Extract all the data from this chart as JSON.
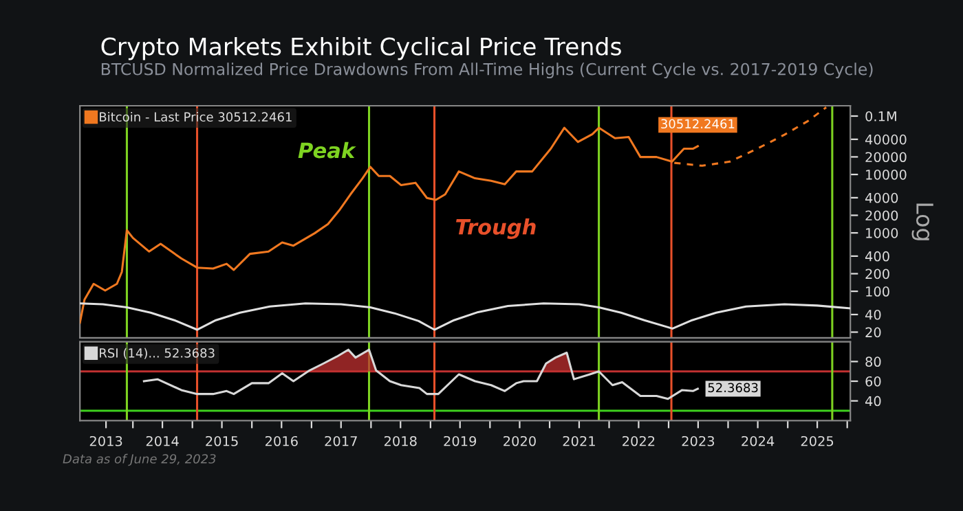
{
  "chart_data": [
    {
      "type": "line",
      "title": "Crypto Markets Exhibit Cyclical Price Trends",
      "subtitle": "BTCUSD Normalized Price Drawdowns From All-Time Highs (Current Cycle vs. 2017-2019 Cycle)",
      "ylabel": "Log",
      "log": "y",
      "xlim": [
        "2013-02-10",
        "2026-01-20"
      ],
      "ylim": [
        16,
        150000
      ],
      "yticks": [
        20,
        40,
        100,
        200,
        400,
        1000,
        2000,
        4000,
        10000,
        20000,
        40000,
        {
          "value": 100000,
          "label": "0.1M"
        }
      ],
      "tick_labels": "y",
      "legend": "top left",
      "marker": "none",
      "series": [
        {
          "name": "Bitcoin - Last Price 30512.2461",
          "color": "#f07820",
          "line_style": "solid",
          "x": [
            "2013-02-10",
            "2013-03-10",
            "2013-05-05",
            "2013-07-15",
            "2013-09-25",
            "2013-10-25",
            "2013-11-25",
            "2014-01-01",
            "2014-04-10",
            "2014-06-20",
            "2014-10-25",
            "2015-01-30",
            "2015-05-08",
            "2015-07-30",
            "2015-09-12",
            "2015-12-20",
            "2016-04-12",
            "2016-07-05",
            "2016-09-12",
            "2017-01-20",
            "2017-04-12",
            "2017-06-20",
            "2017-08-28",
            "2017-11-10",
            "2017-12-28",
            "2018-02-18",
            "2018-04-27",
            "2018-07-05",
            "2018-10-01",
            "2018-12-10",
            "2019-02-03",
            "2019-04-01",
            "2019-06-24",
            "2019-10-01",
            "2020-01-08",
            "2020-04-01",
            "2020-06-10",
            "2020-09-16",
            "2021-01-08",
            "2021-04-01",
            "2021-06-24",
            "2021-09-20",
            "2021-10-30",
            "2022-02-06",
            "2022-05-01",
            "2022-07-12",
            "2022-10-19",
            "2023-01-22",
            "2023-04-05",
            "2023-05-30",
            "2023-06-29"
          ],
          "values": [
            29,
            72,
            134,
            103,
            134,
            214,
            1110,
            820,
            480,
            650,
            365,
            254,
            245,
            295,
            232,
            437,
            480,
            684,
            604,
            985,
            1415,
            2430,
            4560,
            8600,
            13500,
            9400,
            9400,
            6560,
            7200,
            3960,
            3670,
            4560,
            11260,
            8600,
            7800,
            6800,
            11260,
            11260,
            27600,
            63000,
            36000,
            49000,
            63000,
            41700,
            43700,
            19900,
            19900,
            16600,
            27600,
            27600,
            30512.2461
          ],
          "value_labels": [
            null,
            null,
            null,
            null,
            null,
            null,
            null,
            null,
            null,
            null,
            null,
            null,
            null,
            null,
            null,
            null,
            null,
            null,
            null,
            null,
            null,
            null,
            null,
            null,
            null,
            null,
            null,
            null,
            null,
            null,
            null,
            null,
            null,
            null,
            null,
            null,
            null,
            null,
            null,
            null,
            null,
            null,
            null,
            null,
            null,
            null,
            null,
            null,
            null,
            null,
            "30512.2461"
          ]
        },
        {
          "color": "#f07820",
          "line_style": "dashed",
          "x": [
            "2023-02-05",
            "2023-07-26",
            "2024-01-12",
            "2024-06-28",
            "2024-12-12",
            "2025-05-04",
            "2025-08-25"
          ],
          "values": [
            15800,
            14100,
            16600,
            27600,
            48000,
            82000,
            141000
          ]
        },
        {
          "color": "#e0e0e0",
          "line_style": "solid",
          "x": [
            "2013-02-10",
            "2013-07-01",
            "2013-11-25",
            "2014-04-20",
            "2014-09-12",
            "2015-01-30",
            "2015-05-25",
            "2015-10-20",
            "2016-04-20",
            "2016-11-25",
            "2017-07-01",
            "2017-12-28",
            "2018-05-25",
            "2018-10-20",
            "2019-01-25",
            "2019-05-25",
            "2019-10-20",
            "2020-04-20",
            "2020-11-25",
            "2021-07-01",
            "2021-10-30",
            "2022-03-15",
            "2022-08-05",
            "2023-01-25",
            "2023-05-25",
            "2023-10-20",
            "2024-04-20",
            "2024-12-12",
            "2025-07-01",
            "2026-01-20"
          ],
          "values": [
            62,
            60,
            53,
            43,
            32,
            22,
            32,
            43,
            55,
            62,
            60,
            53,
            42,
            31,
            22,
            32,
            44,
            56,
            62,
            60,
            53,
            43,
            32,
            23,
            32,
            43,
            55,
            60,
            57,
            51
          ]
        }
      ],
      "ref_lines": [
        {
          "axis": "x",
          "value": "2013-11-25",
          "color": "#7ed321"
        },
        {
          "axis": "x",
          "value": "2015-01-30",
          "color": "#e8502a"
        },
        {
          "axis": "x",
          "value": "2017-12-20",
          "color": "#7ed321"
        },
        {
          "axis": "x",
          "value": "2019-01-25",
          "color": "#e8502a"
        },
        {
          "axis": "x",
          "value": "2021-10-30",
          "color": "#7ed321"
        },
        {
          "axis": "x",
          "value": "2023-01-18",
          "color": "#e8502a"
        },
        {
          "axis": "x",
          "value": "2025-10-01",
          "color": "#7ed321"
        }
      ],
      "annotations": [
        "Peak",
        "Trough"
      ]
    },
    {
      "type": "line",
      "xlim": [
        "2013-02-10",
        "2026-01-20"
      ],
      "ylim": [
        20,
        100
      ],
      "yticks": [
        40,
        60,
        80
      ],
      "xticks": [
        {
          "value": "2014-01-01",
          "label": null
        },
        {
          "value": "2015-01-01",
          "label": null
        },
        {
          "value": "2016-01-01",
          "label": null
        },
        {
          "value": "2017-01-01",
          "label": null
        },
        {
          "value": "2018-01-01",
          "label": null
        },
        {
          "value": "2019-01-01",
          "label": null
        },
        {
          "value": "2020-01-01",
          "label": null
        },
        {
          "value": "2021-01-01",
          "label": null
        },
        {
          "value": "2022-01-01",
          "label": null
        },
        {
          "value": "2023-01-01",
          "label": null
        },
        {
          "value": "2024-01-01",
          "label": null
        },
        {
          "value": "2025-01-01",
          "label": null
        },
        {
          "value": "2026-01-01",
          "label": null
        },
        {
          "value": "2013-07-20",
          "label": "2013"
        },
        {
          "value": "2014-07-01",
          "label": "2014"
        },
        {
          "value": "2015-07-01",
          "label": "2015"
        },
        {
          "value": "2016-07-01",
          "label": "2016"
        },
        {
          "value": "2017-07-01",
          "label": "2017"
        },
        {
          "value": "2018-07-01",
          "label": "2018"
        },
        {
          "value": "2019-07-01",
          "label": "2019"
        },
        {
          "value": "2020-07-01",
          "label": "2020"
        },
        {
          "value": "2021-07-01",
          "label": "2021"
        },
        {
          "value": "2022-07-01",
          "label": "2022"
        },
        {
          "value": "2023-07-01",
          "label": "2023"
        },
        {
          "value": "2024-07-01",
          "label": "2024"
        },
        {
          "value": "2025-07-01",
          "label": "2025"
        }
      ],
      "legend": "top left",
      "marker": "none",
      "series": [
        {
          "name": "RSI (14)... 52.3683",
          "color": "#d8d8d8",
          "line_style": "solid",
          "x": [
            "2014-03-10",
            "2014-06-01",
            "2014-10-25",
            "2015-01-30",
            "2015-05-08",
            "2015-07-30",
            "2015-09-12",
            "2016-01-01",
            "2016-04-12",
            "2016-07-05",
            "2016-09-12",
            "2016-12-20",
            "2017-03-15",
            "2017-06-05",
            "2017-08-15",
            "2017-09-28",
            "2017-12-20",
            "2018-02-01",
            "2018-04-27",
            "2018-07-05",
            "2018-10-25",
            "2018-12-10",
            "2019-02-18",
            "2019-06-24",
            "2019-10-01",
            "2020-01-08",
            "2020-04-01",
            "2020-06-10",
            "2020-07-25",
            "2020-10-15",
            "2020-12-10",
            "2021-02-06",
            "2021-04-16",
            "2021-05-30",
            "2021-09-05",
            "2021-10-30",
            "2022-01-22",
            "2022-03-22",
            "2022-07-12",
            "2022-10-19",
            "2022-12-28",
            "2023-03-25",
            "2023-05-30",
            "2023-06-29"
          ],
          "values": [
            60,
            62,
            51,
            47,
            47,
            50,
            47,
            58,
            58,
            68,
            60,
            71,
            78,
            85,
            92,
            84,
            92,
            71,
            60,
            56,
            53,
            47,
            47,
            67,
            60,
            56,
            50,
            58,
            60,
            60,
            78,
            84,
            89,
            62,
            67,
            70,
            56,
            59,
            45,
            45,
            42,
            51,
            50,
            52.3683
          ],
          "value_labels": [
            null,
            null,
            null,
            null,
            null,
            null,
            null,
            null,
            null,
            null,
            null,
            null,
            null,
            null,
            null,
            null,
            null,
            null,
            null,
            null,
            null,
            null,
            null,
            null,
            null,
            null,
            null,
            null,
            null,
            null,
            null,
            null,
            null,
            null,
            null,
            null,
            null,
            null,
            null,
            null,
            null,
            null,
            null,
            "52.3683"
          ]
        }
      ],
      "ref_lines": [
        {
          "axis": "y",
          "value": 70,
          "color": "#c03030"
        },
        {
          "axis": "y",
          "value": 30,
          "color": "#3ecf1e"
        },
        {
          "axis": "x",
          "value": "2013-11-25",
          "color": "#7ed321"
        },
        {
          "axis": "x",
          "value": "2015-01-30",
          "color": "#e8502a"
        },
        {
          "axis": "x",
          "value": "2017-12-20",
          "color": "#7ed321"
        },
        {
          "axis": "x",
          "value": "2019-01-25",
          "color": "#e8502a"
        },
        {
          "axis": "x",
          "value": "2021-10-30",
          "color": "#7ed321"
        },
        {
          "axis": "x",
          "value": "2023-01-18",
          "color": "#e8502a"
        },
        {
          "axis": "x",
          "value": "2025-10-01",
          "color": "#7ed321"
        }
      ],
      "annotations": [
        "Data as of June 29, 2023"
      ]
    }
  ]
}
